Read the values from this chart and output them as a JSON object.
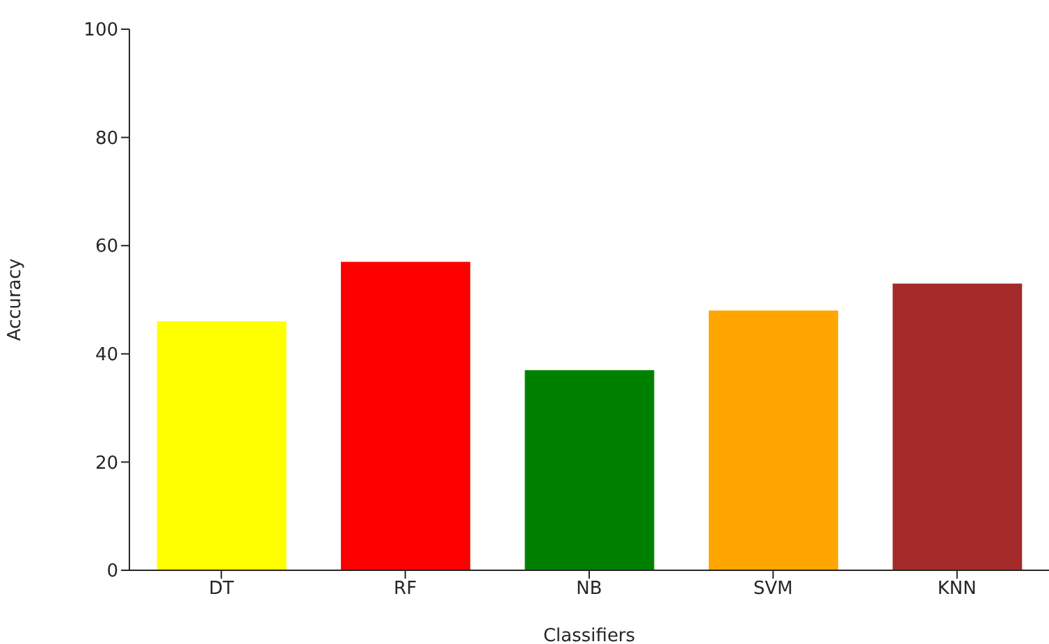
{
  "chart_data": {
    "type": "bar",
    "xlabel": "Classifiers",
    "ylabel": "Accuracy",
    "categories": [
      "DT",
      "RF",
      "NB",
      "SVM",
      "KNN"
    ],
    "values": [
      46,
      57,
      37,
      48,
      53
    ],
    "colors": [
      "#ffff00",
      "#ff0000",
      "#008000",
      "#ffa500",
      "#a52a2a"
    ],
    "ylim": [
      0,
      100
    ],
    "yticks": [
      0,
      20,
      40,
      60,
      80,
      100
    ],
    "grid": false,
    "legend": false
  }
}
